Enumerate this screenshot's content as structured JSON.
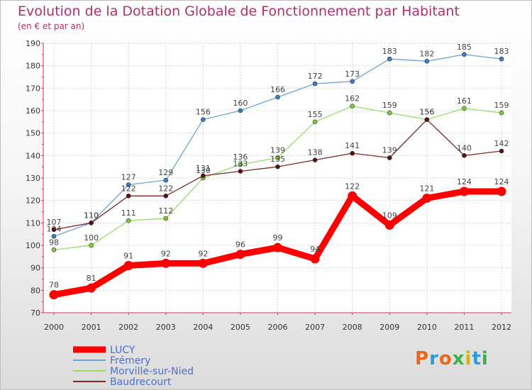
{
  "header": {
    "title": "Evolution de la Dotation Globale de Fonctionnement par Habitant",
    "subtitle": "(en € et par an)"
  },
  "logo": {
    "text": "Proxiti",
    "colors": [
      "#e8681e",
      "#2e9bd6",
      "#e8681e",
      "#3ab24a",
      "#d6b400",
      "#2e9bd6",
      "#3ab24a"
    ]
  },
  "chart_data": {
    "type": "line",
    "title": "Evolution de la Dotation Globale de Fonctionnement par Habitant",
    "subtitle": "(en € et par an)",
    "xlabel": "",
    "ylabel": "",
    "ylim": [
      70,
      190
    ],
    "yticks": [
      70,
      80,
      90,
      100,
      110,
      120,
      130,
      140,
      150,
      160,
      170,
      180,
      190
    ],
    "grid": true,
    "legend_position": "bottom-left",
    "x": [
      "2000",
      "2001",
      "2002",
      "2003",
      "2004",
      "2005",
      "2006",
      "2007",
      "2008",
      "2009",
      "2010",
      "2011",
      "2012"
    ],
    "series": [
      {
        "name": "LUCY",
        "color": "#ff0000",
        "values": [
          78,
          81,
          91,
          92,
          92,
          96,
          99,
          94,
          122,
          109,
          121,
          124,
          124
        ]
      },
      {
        "name": "Frémery",
        "color": "#6fa3d8",
        "values": [
          104,
          110,
          127,
          129,
          156,
          160,
          166,
          172,
          173,
          183,
          182,
          185,
          183
        ]
      },
      {
        "name": "Morville-sur-Nied",
        "color": "#99dd66",
        "values": [
          98,
          100,
          111,
          112,
          130,
          136,
          139,
          155,
          162,
          159,
          156,
          161,
          159
        ]
      },
      {
        "name": "Baudrecourt",
        "color": "#7a2a2a",
        "values": [
          107,
          110,
          122,
          122,
          131,
          133,
          135,
          138,
          141,
          139,
          156,
          140,
          142
        ]
      }
    ]
  }
}
